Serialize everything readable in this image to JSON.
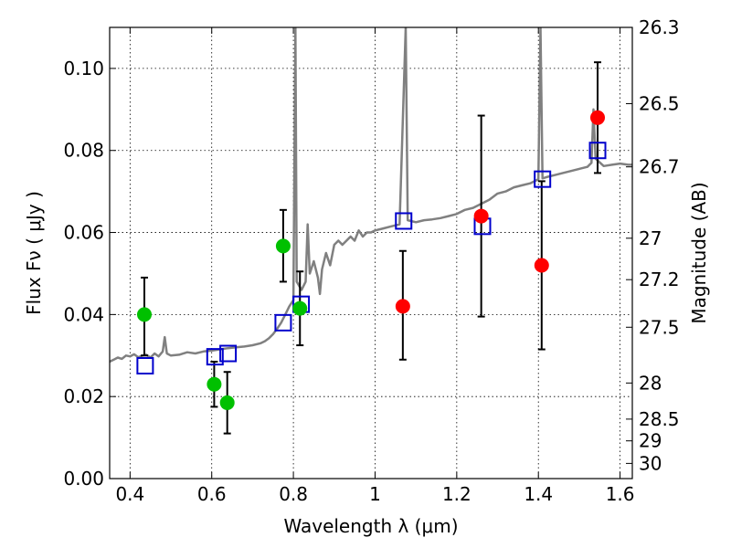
{
  "chart_data": {
    "type": "scatter",
    "xlabel": "Wavelength  λ (μm)",
    "ylabel": "Flux  Fν  ( μJy )",
    "ylabel_right": "Magnitude (AB)",
    "xlim": [
      0.35,
      1.63
    ],
    "ylim": [
      0.0,
      0.11
    ],
    "x_ticks": [
      "0.4",
      "0.6",
      "0.8",
      "1",
      "1.2",
      "1.4",
      "1.6"
    ],
    "x_tick_values": [
      0.4,
      0.6,
      0.8,
      1.0,
      1.2,
      1.4,
      1.6
    ],
    "y_ticks": [
      "0.00",
      "0.02",
      "0.04",
      "0.06",
      "0.08",
      "0.10"
    ],
    "y_tick_values": [
      0.0,
      0.02,
      0.04,
      0.06,
      0.08,
      0.1
    ],
    "right_ticks": [
      {
        "label": "26.3",
        "flux": 0.11
      },
      {
        "label": "26.5",
        "flux": 0.0914
      },
      {
        "label": "26.7",
        "flux": 0.076
      },
      {
        "label": "27",
        "flux": 0.0586
      },
      {
        "label": "27.2",
        "flux": 0.0485
      },
      {
        "label": "27.5",
        "flux": 0.0369
      },
      {
        "label": "28",
        "flux": 0.0233
      },
      {
        "label": "28.5",
        "flux": 0.0145
      },
      {
        "label": "29",
        "flux": 0.0092
      },
      {
        "label": "30",
        "flux": 0.0037
      }
    ],
    "grid": true,
    "colors": {
      "green": "#00c000",
      "red": "#ff0000",
      "blue": "#0000cc",
      "model": "#808080"
    },
    "series": [
      {
        "marker": "circle",
        "color": "#00c000",
        "points": [
          {
            "x": 0.435,
            "y": 0.04,
            "yerr_low": 0.03,
            "yerr_high": 0.049
          },
          {
            "x": 0.606,
            "y": 0.023,
            "yerr_low": 0.0175,
            "yerr_high": 0.0285
          },
          {
            "x": 0.638,
            "y": 0.0185,
            "yerr_low": 0.011,
            "yerr_high": 0.026
          },
          {
            "x": 0.775,
            "y": 0.0567,
            "yerr_low": 0.048,
            "yerr_high": 0.0655
          },
          {
            "x": 0.816,
            "y": 0.0415,
            "yerr_low": 0.0325,
            "yerr_high": 0.0505
          }
        ]
      },
      {
        "marker": "circle",
        "color": "#ff0000",
        "points": [
          {
            "x": 1.068,
            "y": 0.042,
            "yerr_low": 0.029,
            "yerr_high": 0.0555
          },
          {
            "x": 1.26,
            "y": 0.064,
            "yerr_low": 0.0395,
            "yerr_high": 0.0885
          },
          {
            "x": 1.408,
            "y": 0.052,
            "yerr_low": 0.0315,
            "yerr_high": 0.0725
          },
          {
            "x": 1.545,
            "y": 0.088,
            "yerr_low": 0.0745,
            "yerr_high": 0.1015
          }
        ]
      },
      {
        "marker": "square",
        "color": "#0000cc",
        "points": [
          {
            "x": 0.437,
            "y": 0.0275
          },
          {
            "x": 0.608,
            "y": 0.0297
          },
          {
            "x": 0.64,
            "y": 0.0305
          },
          {
            "x": 0.775,
            "y": 0.038
          },
          {
            "x": 0.819,
            "y": 0.0425
          },
          {
            "x": 1.07,
            "y": 0.0628
          },
          {
            "x": 1.263,
            "y": 0.0615
          },
          {
            "x": 1.41,
            "y": 0.073
          },
          {
            "x": 1.545,
            "y": 0.08
          }
        ]
      },
      {
        "marker": "line",
        "color": "#808080",
        "points": [
          [
            0.35,
            0.0285
          ],
          [
            0.36,
            0.029
          ],
          [
            0.37,
            0.0295
          ],
          [
            0.38,
            0.0292
          ],
          [
            0.39,
            0.03
          ],
          [
            0.4,
            0.0298
          ],
          [
            0.41,
            0.0303
          ],
          [
            0.42,
            0.0296
          ],
          [
            0.43,
            0.03
          ],
          [
            0.44,
            0.0302
          ],
          [
            0.45,
            0.0295
          ],
          [
            0.46,
            0.0305
          ],
          [
            0.47,
            0.0298
          ],
          [
            0.48,
            0.031
          ],
          [
            0.485,
            0.0345
          ],
          [
            0.49,
            0.0305
          ],
          [
            0.5,
            0.03
          ],
          [
            0.52,
            0.0302
          ],
          [
            0.54,
            0.0308
          ],
          [
            0.56,
            0.0305
          ],
          [
            0.58,
            0.031
          ],
          [
            0.6,
            0.0312
          ],
          [
            0.62,
            0.0315
          ],
          [
            0.64,
            0.0318
          ],
          [
            0.66,
            0.032
          ],
          [
            0.68,
            0.0322
          ],
          [
            0.7,
            0.0325
          ],
          [
            0.72,
            0.033
          ],
          [
            0.73,
            0.0335
          ],
          [
            0.74,
            0.0342
          ],
          [
            0.75,
            0.0352
          ],
          [
            0.76,
            0.0365
          ],
          [
            0.77,
            0.038
          ],
          [
            0.78,
            0.04
          ],
          [
            0.79,
            0.042
          ],
          [
            0.8,
            0.0435
          ],
          [
            0.805,
            0.11
          ],
          [
            0.808,
            0.048
          ],
          [
            0.82,
            0.046
          ],
          [
            0.83,
            0.048
          ],
          [
            0.835,
            0.062
          ],
          [
            0.84,
            0.05
          ],
          [
            0.85,
            0.053
          ],
          [
            0.86,
            0.049
          ],
          [
            0.865,
            0.045
          ],
          [
            0.87,
            0.051
          ],
          [
            0.88,
            0.055
          ],
          [
            0.89,
            0.052
          ],
          [
            0.9,
            0.057
          ],
          [
            0.91,
            0.058
          ],
          [
            0.92,
            0.057
          ],
          [
            0.93,
            0.058
          ],
          [
            0.94,
            0.059
          ],
          [
            0.95,
            0.058
          ],
          [
            0.96,
            0.0605
          ],
          [
            0.97,
            0.059
          ],
          [
            0.98,
            0.06
          ],
          [
            0.99,
            0.06
          ],
          [
            1.0,
            0.0605
          ],
          [
            1.02,
            0.061
          ],
          [
            1.04,
            0.0615
          ],
          [
            1.06,
            0.062
          ],
          [
            1.075,
            0.11
          ],
          [
            1.08,
            0.063
          ],
          [
            1.1,
            0.0625
          ],
          [
            1.12,
            0.063
          ],
          [
            1.14,
            0.0632
          ],
          [
            1.16,
            0.0635
          ],
          [
            1.18,
            0.064
          ],
          [
            1.2,
            0.0645
          ],
          [
            1.22,
            0.0655
          ],
          [
            1.24,
            0.066
          ],
          [
            1.26,
            0.067
          ],
          [
            1.28,
            0.068
          ],
          [
            1.3,
            0.0695
          ],
          [
            1.32,
            0.07
          ],
          [
            1.34,
            0.071
          ],
          [
            1.36,
            0.0715
          ],
          [
            1.38,
            0.072
          ],
          [
            1.4,
            0.073
          ],
          [
            1.405,
            0.11
          ],
          [
            1.41,
            0.0732
          ],
          [
            1.42,
            0.0735
          ],
          [
            1.44,
            0.074
          ],
          [
            1.46,
            0.0745
          ],
          [
            1.48,
            0.075
          ],
          [
            1.5,
            0.0755
          ],
          [
            1.52,
            0.076
          ],
          [
            1.53,
            0.077
          ],
          [
            1.535,
            0.09
          ],
          [
            1.54,
            0.078
          ],
          [
            1.56,
            0.0762
          ],
          [
            1.58,
            0.0765
          ],
          [
            1.6,
            0.0768
          ],
          [
            1.62,
            0.0765
          ],
          [
            1.63,
            0.0765
          ]
        ]
      }
    ]
  }
}
